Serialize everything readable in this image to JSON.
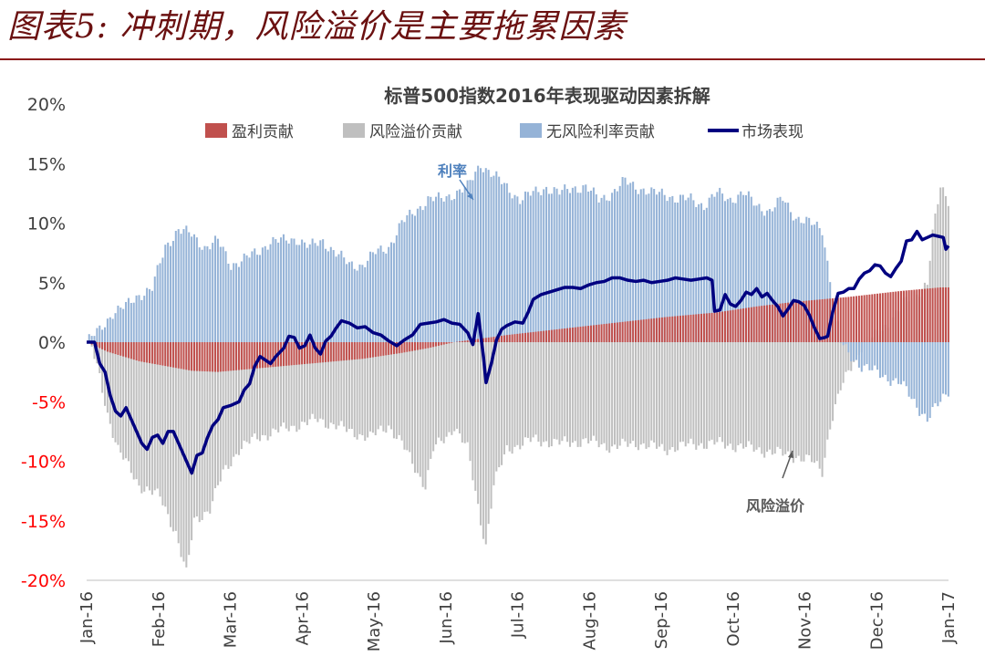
{
  "figure_title": "图表5: 冲刺期，风险溢价是主要拖累因素",
  "colors": {
    "earnings": "#c0504d",
    "risk_premium": "#bfbfbf",
    "risk_free": "#95b3d7",
    "market": "#000080",
    "title_red": "#6b1111",
    "neg_tick": "#ff0000",
    "annotation_rate": "#4f81bd",
    "annotation_rp": "#595959"
  },
  "chart_data": {
    "type": "bar",
    "title": "标普500指数2016年表现驱动因素拆解",
    "legend": [
      "盈利贡献",
      "风险溢价贡献",
      "无风险利率贡献",
      "市场表现"
    ],
    "legend_position": "top",
    "grid": false,
    "ylim": [
      -20,
      20
    ],
    "y_ticks": [
      "20%",
      "15%",
      "10%",
      "5%",
      "0%",
      "-5%",
      "-10%",
      "-15%",
      "-20%"
    ],
    "x_ticks": [
      "Jan-16",
      "Feb-16",
      "Mar-16",
      "Apr-16",
      "May-16",
      "Jun-16",
      "Jul-16",
      "Aug-16",
      "Sep-16",
      "Oct-16",
      "Nov-16",
      "Dec-16",
      "Jan-17"
    ],
    "annotations": [
      {
        "text": "利率",
        "x": "Jun-16",
        "y": 11
      },
      {
        "text": "风险溢价",
        "x": "Nov-16",
        "y": -10
      }
    ],
    "series": [
      {
        "name": "盈利贡献",
        "keypoints": [
          [
            0,
            0
          ],
          [
            8,
            -0.8
          ],
          [
            20,
            -1.6
          ],
          [
            30,
            -2.0
          ],
          [
            40,
            -2.4
          ],
          [
            50,
            -2.5
          ],
          [
            60,
            -2.3
          ],
          [
            75,
            -2.0
          ],
          [
            90,
            -1.7
          ],
          [
            105,
            -1.4
          ],
          [
            120,
            -0.9
          ],
          [
            130,
            -0.5
          ],
          [
            140,
            0
          ],
          [
            150,
            0.3
          ],
          [
            160,
            0.6
          ],
          [
            180,
            1.1
          ],
          [
            200,
            1.6
          ],
          [
            220,
            2.1
          ],
          [
            240,
            2.5
          ],
          [
            255,
            3.0
          ],
          [
            270,
            3.4
          ],
          [
            290,
            3.8
          ],
          [
            310,
            4.3
          ],
          [
            325,
            4.6
          ],
          [
            328,
            4.6
          ]
        ]
      },
      {
        "name": "风险溢价贡献",
        "keypoints": [
          [
            0,
            0
          ],
          [
            2,
            -0.5
          ],
          [
            5,
            -3
          ],
          [
            8,
            -6
          ],
          [
            12,
            -9
          ],
          [
            20,
            -12
          ],
          [
            28,
            -13
          ],
          [
            34,
            -16
          ],
          [
            38,
            -19.5
          ],
          [
            41,
            -15
          ],
          [
            47,
            -14
          ],
          [
            52,
            -11
          ],
          [
            58,
            -9
          ],
          [
            65,
            -8
          ],
          [
            72,
            -7.5
          ],
          [
            80,
            -7
          ],
          [
            88,
            -6.5
          ],
          [
            95,
            -7
          ],
          [
            100,
            -7.5
          ],
          [
            108,
            -8
          ],
          [
            115,
            -7
          ],
          [
            120,
            -8.5
          ],
          [
            126,
            -11
          ],
          [
            129,
            -12
          ],
          [
            132,
            -9
          ],
          [
            137,
            -8
          ],
          [
            140,
            -7
          ],
          [
            145,
            -9
          ],
          [
            150,
            -15
          ],
          [
            152,
            -17
          ],
          [
            155,
            -12
          ],
          [
            160,
            -9
          ],
          [
            170,
            -8.2
          ],
          [
            180,
            -8.5
          ],
          [
            190,
            -8.3
          ],
          [
            200,
            -8.8
          ],
          [
            210,
            -8.5
          ],
          [
            220,
            -9
          ],
          [
            230,
            -8.6
          ],
          [
            240,
            -8.5
          ],
          [
            250,
            -8.8
          ],
          [
            260,
            -9.2
          ],
          [
            270,
            -9.6
          ],
          [
            276,
            -10
          ],
          [
            280,
            -10.8
          ],
          [
            283,
            -7
          ],
          [
            287,
            -4
          ],
          [
            292,
            -1.5
          ],
          [
            296,
            0
          ],
          [
            300,
            0.5
          ],
          [
            305,
            1.5
          ],
          [
            310,
            3
          ],
          [
            315,
            4
          ],
          [
            320,
            5
          ],
          [
            322,
            9
          ],
          [
            325,
            13
          ],
          [
            328,
            12
          ]
        ]
      },
      {
        "name": "无风险利率贡献",
        "keypoints": [
          [
            0,
            0
          ],
          [
            5,
            1
          ],
          [
            10,
            2.5
          ],
          [
            15,
            3
          ],
          [
            20,
            4
          ],
          [
            25,
            4.5
          ],
          [
            30,
            8
          ],
          [
            35,
            9.5
          ],
          [
            40,
            9
          ],
          [
            45,
            8
          ],
          [
            50,
            8.5
          ],
          [
            55,
            6.5
          ],
          [
            60,
            7
          ],
          [
            65,
            7.5
          ],
          [
            70,
            8.5
          ],
          [
            75,
            8.5
          ],
          [
            80,
            8.7
          ],
          [
            85,
            8
          ],
          [
            90,
            8.5
          ],
          [
            95,
            7.5
          ],
          [
            100,
            6.5
          ],
          [
            105,
            6.5
          ],
          [
            110,
            7.5
          ],
          [
            115,
            8
          ],
          [
            120,
            10
          ],
          [
            125,
            11
          ],
          [
            130,
            12
          ],
          [
            135,
            12
          ],
          [
            140,
            12.5
          ],
          [
            145,
            13
          ],
          [
            150,
            15
          ],
          [
            155,
            14
          ],
          [
            160,
            13
          ],
          [
            165,
            12
          ],
          [
            170,
            12.5
          ],
          [
            175,
            13
          ],
          [
            180,
            12.5
          ],
          [
            185,
            13
          ],
          [
            190,
            13
          ],
          [
            195,
            12
          ],
          [
            200,
            12.5
          ],
          [
            205,
            13.5
          ],
          [
            210,
            13
          ],
          [
            215,
            12.5
          ],
          [
            220,
            12.5
          ],
          [
            225,
            12
          ],
          [
            230,
            12
          ],
          [
            235,
            11.5
          ],
          [
            240,
            12.5
          ],
          [
            245,
            12
          ],
          [
            250,
            12.5
          ],
          [
            255,
            11.5
          ],
          [
            260,
            11
          ],
          [
            265,
            12
          ],
          [
            270,
            10.5
          ],
          [
            275,
            10
          ],
          [
            280,
            9.5
          ],
          [
            284,
            4
          ],
          [
            287,
            0
          ],
          [
            290,
            -1
          ],
          [
            295,
            -2
          ],
          [
            300,
            -2.5
          ],
          [
            305,
            -3
          ],
          [
            310,
            -3.5
          ],
          [
            315,
            -5
          ],
          [
            320,
            -6.5
          ],
          [
            325,
            -5
          ],
          [
            328,
            -4
          ]
        ]
      },
      {
        "name": "市场表现",
        "keypoints": [
          [
            0,
            0
          ],
          [
            3,
            0
          ],
          [
            5,
            -1.8
          ],
          [
            7,
            -2.5
          ],
          [
            9,
            -4.5
          ],
          [
            11,
            -5.8
          ],
          [
            13,
            -6.2
          ],
          [
            15,
            -5.5
          ],
          [
            17,
            -6.5
          ],
          [
            19,
            -7.5
          ],
          [
            21,
            -8.5
          ],
          [
            23,
            -9
          ],
          [
            25,
            -8
          ],
          [
            27,
            -7.8
          ],
          [
            29,
            -8.5
          ],
          [
            31,
            -7.5
          ],
          [
            33,
            -7.5
          ],
          [
            36,
            -9
          ],
          [
            38,
            -10
          ],
          [
            40,
            -11
          ],
          [
            42,
            -9.5
          ],
          [
            44,
            -9.3
          ],
          [
            46,
            -8
          ],
          [
            48,
            -7
          ],
          [
            50,
            -6.5
          ],
          [
            52,
            -5.5
          ],
          [
            55,
            -5.3
          ],
          [
            58,
            -5
          ],
          [
            60,
            -4
          ],
          [
            62,
            -3.5
          ],
          [
            64,
            -2
          ],
          [
            66,
            -1.2
          ],
          [
            68,
            -1.5
          ],
          [
            70,
            -1.8
          ],
          [
            72,
            -1.2
          ],
          [
            75,
            -0.5
          ],
          [
            77,
            0.5
          ],
          [
            79,
            0.4
          ],
          [
            81,
            -0.5
          ],
          [
            83,
            -0.3
          ],
          [
            85,
            0.6
          ],
          [
            87,
            -0.5
          ],
          [
            89,
            -1
          ],
          [
            91,
            0.1
          ],
          [
            93,
            0.5
          ],
          [
            95,
            1.2
          ],
          [
            97,
            1.8
          ],
          [
            100,
            1.6
          ],
          [
            103,
            1.2
          ],
          [
            106,
            1.3
          ],
          [
            109,
            0.8
          ],
          [
            112,
            0.6
          ],
          [
            115,
            0.1
          ],
          [
            118,
            -0.3
          ],
          [
            121,
            0.2
          ],
          [
            124,
            0.6
          ],
          [
            127,
            1.5
          ],
          [
            130,
            1.6
          ],
          [
            133,
            1.7
          ],
          [
            136,
            1.9
          ],
          [
            139,
            1.6
          ],
          [
            142,
            1.5
          ],
          [
            145,
            0.8
          ],
          [
            147,
            -0.2
          ],
          [
            149,
            2.4
          ],
          [
            151,
            -1.2
          ],
          [
            152,
            -3.4
          ],
          [
            154,
            -1.8
          ],
          [
            156,
            0.2
          ],
          [
            158,
            1.1
          ],
          [
            160,
            1.4
          ],
          [
            163,
            1.7
          ],
          [
            166,
            1.6
          ],
          [
            168,
            2.5
          ],
          [
            170,
            3.6
          ],
          [
            173,
            4
          ],
          [
            176,
            4.2
          ],
          [
            179,
            4.4
          ],
          [
            182,
            4.6
          ],
          [
            185,
            4.6
          ],
          [
            188,
            4.5
          ],
          [
            191,
            4.8
          ],
          [
            194,
            5
          ],
          [
            197,
            5.1
          ],
          [
            200,
            5.4
          ],
          [
            203,
            5.4
          ],
          [
            206,
            5.2
          ],
          [
            209,
            5.1
          ],
          [
            212,
            5.2
          ],
          [
            215,
            5
          ],
          [
            218,
            5.1
          ],
          [
            221,
            5.2
          ],
          [
            224,
            5.4
          ],
          [
            227,
            5.3
          ],
          [
            230,
            5.2
          ],
          [
            233,
            5.3
          ],
          [
            236,
            5.4
          ],
          [
            238,
            5.2
          ],
          [
            239,
            2.6
          ],
          [
            241,
            2.7
          ],
          [
            243,
            4
          ],
          [
            245,
            3.2
          ],
          [
            247,
            3
          ],
          [
            249,
            3.5
          ],
          [
            251,
            4.2
          ],
          [
            253,
            4
          ],
          [
            255,
            4.5
          ],
          [
            257,
            3.8
          ],
          [
            259,
            4.1
          ],
          [
            261,
            3.5
          ],
          [
            263,
            3
          ],
          [
            265,
            2.2
          ],
          [
            267,
            2.8
          ],
          [
            269,
            3.5
          ],
          [
            271,
            3.4
          ],
          [
            273,
            3.1
          ],
          [
            275,
            2.3
          ],
          [
            277,
            1.2
          ],
          [
            279,
            0.3
          ],
          [
            281,
            0.4
          ],
          [
            282,
            0.5
          ],
          [
            284,
            2.6
          ],
          [
            286,
            4.1
          ],
          [
            288,
            4.2
          ],
          [
            290,
            4.5
          ],
          [
            292,
            4.5
          ],
          [
            294,
            5.3
          ],
          [
            296,
            5.8
          ],
          [
            298,
            6
          ],
          [
            300,
            6.5
          ],
          [
            302,
            6.4
          ],
          [
            304,
            5.8
          ],
          [
            306,
            5.5
          ],
          [
            308,
            6.2
          ],
          [
            310,
            6.8
          ],
          [
            312,
            8.5
          ],
          [
            314,
            8.6
          ],
          [
            316,
            9.3
          ],
          [
            318,
            8.6
          ],
          [
            320,
            8.8
          ],
          [
            322,
            9
          ],
          [
            324,
            8.9
          ],
          [
            326,
            8.8
          ],
          [
            327,
            7.8
          ],
          [
            328,
            8.1
          ]
        ]
      }
    ]
  }
}
